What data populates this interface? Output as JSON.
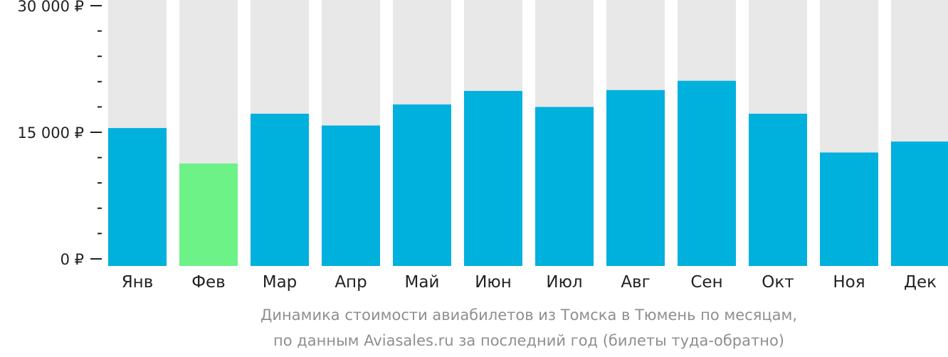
{
  "chart_data": {
    "type": "bar",
    "categories": [
      "Янв",
      "Фев",
      "Мар",
      "Апр",
      "Май",
      "Июн",
      "Июл",
      "Авг",
      "Сен",
      "Окт",
      "Ноя",
      "Дек"
    ],
    "values": [
      15500,
      11300,
      17200,
      15800,
      18300,
      19900,
      18000,
      20000,
      21100,
      17200,
      12600,
      13900
    ],
    "ylim": [
      0,
      30000
    ],
    "yticks": [
      {
        "value": 0,
        "label": "0 ₽"
      },
      {
        "value": 15000,
        "label": "15 000 ₽"
      },
      {
        "value": 30000,
        "label": "30 000 ₽"
      }
    ],
    "minor_tick_step": 3000,
    "highlight_index": 1,
    "colors": {
      "bar": "#00b0dd",
      "highlight": "#6cf287",
      "track": "#e8e8e8",
      "axis": "#222222"
    },
    "caption_line1": "Динамика стоимости авиабилетов из Томска в Тюмень по месяцам,",
    "caption_line2": "по данным Aviasales.ru за последний год (билеты туда-обратно)"
  }
}
